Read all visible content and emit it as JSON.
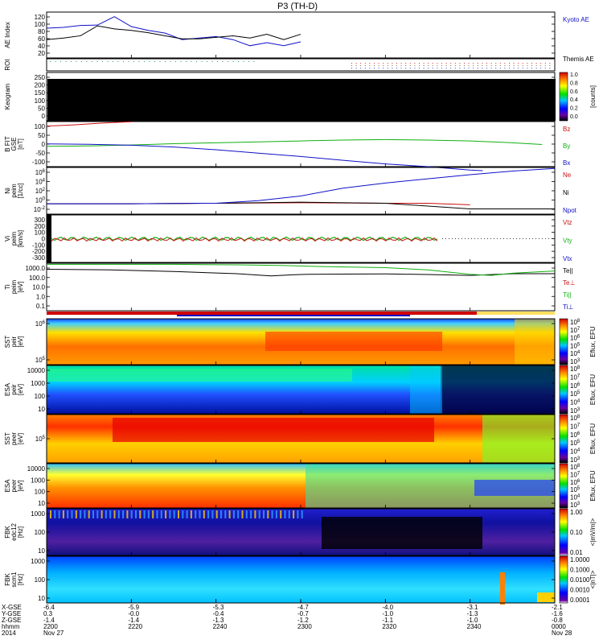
{
  "chart_data": {
    "type": "line",
    "title": "P3 (TH-D)",
    "time_ticks": [
      "2200",
      "2220",
      "2240",
      "2300",
      "2320",
      "2340",
      "0000"
    ],
    "footer": {
      "row_labels": [
        "X-GSE",
        "Y-GSE",
        "Z-GSE",
        "hhmm",
        "2014"
      ],
      "columns": [
        {
          "x": "-6.4",
          "y": "0.3",
          "z": "-1.4",
          "hhmm": "2200",
          "date": "Nov 27"
        },
        {
          "x": "-5.9",
          "y": "-0.0",
          "z": "-1.4",
          "hhmm": "2220",
          "date": ""
        },
        {
          "x": "-5.3",
          "y": "-0.4",
          "z": "-1.3",
          "hhmm": "2240",
          "date": ""
        },
        {
          "x": "-4.7",
          "y": "-0.7",
          "z": "-1.2",
          "hhmm": "2300",
          "date": ""
        },
        {
          "x": "-4.0",
          "y": "-1.0",
          "z": "-1.1",
          "hhmm": "2320",
          "date": ""
        },
        {
          "x": "-3.1",
          "y": "-1.3",
          "z": "-1.0",
          "hhmm": "2340",
          "date": ""
        },
        {
          "x": "-2.1",
          "y": "-1.6",
          "z": "-0.8",
          "hhmm": "0000",
          "date": "Nov 28"
        }
      ]
    },
    "panels": [
      {
        "id": "ae",
        "ylabel": "AE Index",
        "yticks": [
          "120",
          "100",
          "80",
          "60",
          "40",
          "20"
        ],
        "yrange": [
          0,
          120
        ],
        "legend": [
          "Kyoto AE",
          "Themis AE"
        ],
        "series": [
          {
            "name": "Kyoto AE",
            "color": "#1010c8",
            "x": [
              0,
              4,
              8,
              12,
              16,
              20,
              24,
              28,
              32,
              36,
              40,
              44,
              48,
              52,
              56,
              60
            ],
            "y": [
              78,
              80,
              85,
              86,
              108,
              82,
              72,
              65,
              48,
              52,
              56,
              48,
              32,
              40,
              32,
              42
            ]
          },
          {
            "name": "Themis AE",
            "color": "#000000",
            "x": [
              0,
              4,
              8,
              12,
              16,
              20,
              24,
              28,
              32,
              36,
              40,
              44,
              48,
              52,
              56,
              60
            ],
            "y": [
              48,
              52,
              58,
              84,
              76,
              72,
              66,
              58,
              50,
              50,
              54,
              58,
              52,
              62,
              48,
              62
            ]
          }
        ]
      },
      {
        "id": "roi",
        "ylabel": "ROI"
      },
      {
        "id": "keogram",
        "ylabel": "Keogram",
        "yticks": [
          "250",
          "200",
          "150",
          "100",
          "50",
          "0"
        ],
        "yrange": [
          0,
          260
        ],
        "colorbar": {
          "ticks": [
            "1.0",
            "0.8",
            "0.6",
            "0.4",
            "0.2",
            "0.0"
          ],
          "label": "[counts]"
        }
      },
      {
        "id": "bfit",
        "ylabel": "B FIT",
        "ylabel2": "GSE",
        "units": "[nT]",
        "yticks": [
          "100",
          "50",
          "0",
          "-50",
          "-100"
        ],
        "yrange": [
          -100,
          100
        ],
        "legend": [
          "Bz",
          "By",
          "Bx"
        ],
        "series": [
          {
            "name": "Bz",
            "color": "#c81010",
            "x": [
              0,
              6,
              12,
              16,
              20
            ],
            "y": [
              80,
              85,
              92,
              96,
              99
            ]
          },
          {
            "name": "By",
            "color": "#10b010",
            "x": [
              0,
              10,
              20,
              30,
              40,
              50,
              60,
              70,
              80,
              90,
              100,
              110,
              117
            ],
            "y": [
              -10,
              -8,
              -4,
              2,
              6,
              10,
              14,
              18,
              20,
              18,
              14,
              6,
              -2
            ]
          },
          {
            "name": "Bx",
            "color": "#1010c8",
            "x": [
              0,
              10,
              20,
              30,
              40,
              50,
              60,
              70,
              80,
              90,
              100,
              103
            ],
            "y": [
              1,
              -1,
              -5,
              -13,
              -25,
              -40,
              -55,
              -72,
              -88,
              -100,
              -115,
              -118
            ]
          }
        ]
      },
      {
        "id": "ni",
        "ylabel": "Ni",
        "ylabel2": "peim",
        "units": "[1/cc]",
        "yticks": [
          "10^6",
          "10^4",
          "10^2",
          "10^0",
          "10^-2"
        ],
        "yrange": [
          -2,
          7
        ],
        "legend": [
          "Ne",
          "Ni",
          "Npot"
        ],
        "series": [
          {
            "name": "Ne",
            "color": "#c81010",
            "x": [
              0,
              20,
              40,
              60,
              80,
              90,
              100
            ],
            "y": [
              0,
              0,
              0.1,
              0.2,
              0.1,
              0.1,
              -0.2
            ]
          },
          {
            "name": "Ni",
            "color": "#000000",
            "x": [
              0,
              20,
              40,
              60,
              80,
              100,
              120
            ],
            "y": [
              0,
              0,
              0.1,
              0.3,
              0.1,
              -1,
              -1
            ]
          },
          {
            "name": "Npot",
            "color": "#1010c8",
            "x": [
              0,
              20,
              40,
              50,
              60,
              70,
              80,
              90,
              100,
              110,
              120
            ],
            "y": [
              0,
              0,
              0.1,
              0.6,
              1.5,
              3,
              4,
              4.8,
              5.6,
              6.3,
              6.8
            ]
          }
        ]
      },
      {
        "id": "vi",
        "ylabel": "Vi",
        "ylabel2": "peim",
        "units": "[km/s]",
        "yticks": [
          "300",
          "200",
          "100",
          "0",
          "-100",
          "-200",
          "-300"
        ],
        "yrange": [
          -300,
          300
        ],
        "legend": [
          "Vtz",
          "Vty",
          "Vtx"
        ]
      },
      {
        "id": "ti",
        "ylabel": "Ti",
        "ylabel2": "peim",
        "units": "[eV]",
        "yticks": [
          "1000.0",
          "100.0",
          "10.0",
          "1.0",
          "0.1"
        ],
        "yrange": [
          -1,
          3.3
        ],
        "legend": [
          "Te||",
          "Te⊥",
          "Ti||",
          "Ti⊥"
        ],
        "series": [
          {
            "name": "Te",
            "color": "#000000",
            "x": [
              0,
              15,
              30,
              45,
              53,
              58,
              62,
              70,
              80,
              90,
              100,
              110,
              120
            ],
            "y": [
              2.75,
              2.7,
              2.55,
              2.35,
              2.15,
              2.25,
              2.3,
              2.32,
              2.33,
              2.28,
              2.2,
              2.35,
              2.35
            ]
          },
          {
            "name": "Ti",
            "color": "#10b010",
            "x": [
              0,
              15,
              30,
              45,
              55,
              65,
              80,
              90,
              100,
              105,
              110,
              120
            ],
            "y": [
              3.2,
              3.2,
              3.2,
              3.15,
              3.1,
              3.0,
              2.9,
              2.7,
              2.3,
              2.2,
              2.4,
              2.6
            ]
          }
        ]
      },
      {
        "id": "sst_i",
        "ylabel": "SST",
        "ylabel2": "peir",
        "units": "[eV]",
        "yticks": [
          "10^6",
          "10^5"
        ],
        "kind": "spectrogram",
        "colorbar": {
          "ticks": [
            "10^8",
            "10^7",
            "10^6",
            "10^5",
            "10^4",
            "10^3"
          ],
          "label": "Eflux, EFU"
        }
      },
      {
        "id": "esa_i",
        "ylabel": "ESA",
        "ylabel2": "peir",
        "units": "[eV]",
        "yticks": [
          "10000",
          "1000",
          "100",
          "10"
        ],
        "kind": "spectrogram",
        "colorbar": {
          "ticks": [
            "10^8",
            "10^7",
            "10^6",
            "10^5",
            "10^4",
            "10^3"
          ],
          "label": "Eflux, EFU"
        }
      },
      {
        "id": "sst_e",
        "ylabel": "SST",
        "ylabel2": "peer",
        "units": "[eV]",
        "yticks": [
          "10^5"
        ],
        "kind": "spectrogram",
        "colorbar": {
          "ticks": [
            "10^8",
            "10^7",
            "10^6",
            "10^5",
            "10^4",
            "10^3"
          ],
          "label": "Eflux, EFU"
        }
      },
      {
        "id": "esa_e",
        "ylabel": "ESA",
        "ylabel2": "peer",
        "units": "[eV]",
        "yticks": [
          "10000",
          "1000",
          "100",
          "10"
        ],
        "kind": "spectrogram",
        "colorbar": {
          "ticks": [
            "10^8",
            "10^7",
            "10^6",
            "10^5",
            "10^4",
            "10^3"
          ],
          "label": "Eflux, EFU"
        }
      },
      {
        "id": "fbk_e",
        "ylabel": "FBK",
        "ylabel2": "edc12",
        "units": "[Hz]",
        "yticks": [
          "1000",
          "100",
          "10"
        ],
        "kind": "spectrogram",
        "colorbar": {
          "ticks": [
            "1.00",
            "0.10",
            "0.01"
          ],
          "label": "<|mV/m|>"
        }
      },
      {
        "id": "fbk_b",
        "ylabel": "FBK",
        "ylabel2": "scm1",
        "units": "[Hz]",
        "yticks": [
          "1000",
          "100",
          "10"
        ],
        "kind": "spectrogram",
        "colorbar": {
          "ticks": [
            "1.0000",
            "0.1000",
            "0.0100",
            "0.0010",
            "0.0001"
          ],
          "label": "<|nT|>"
        }
      }
    ]
  }
}
